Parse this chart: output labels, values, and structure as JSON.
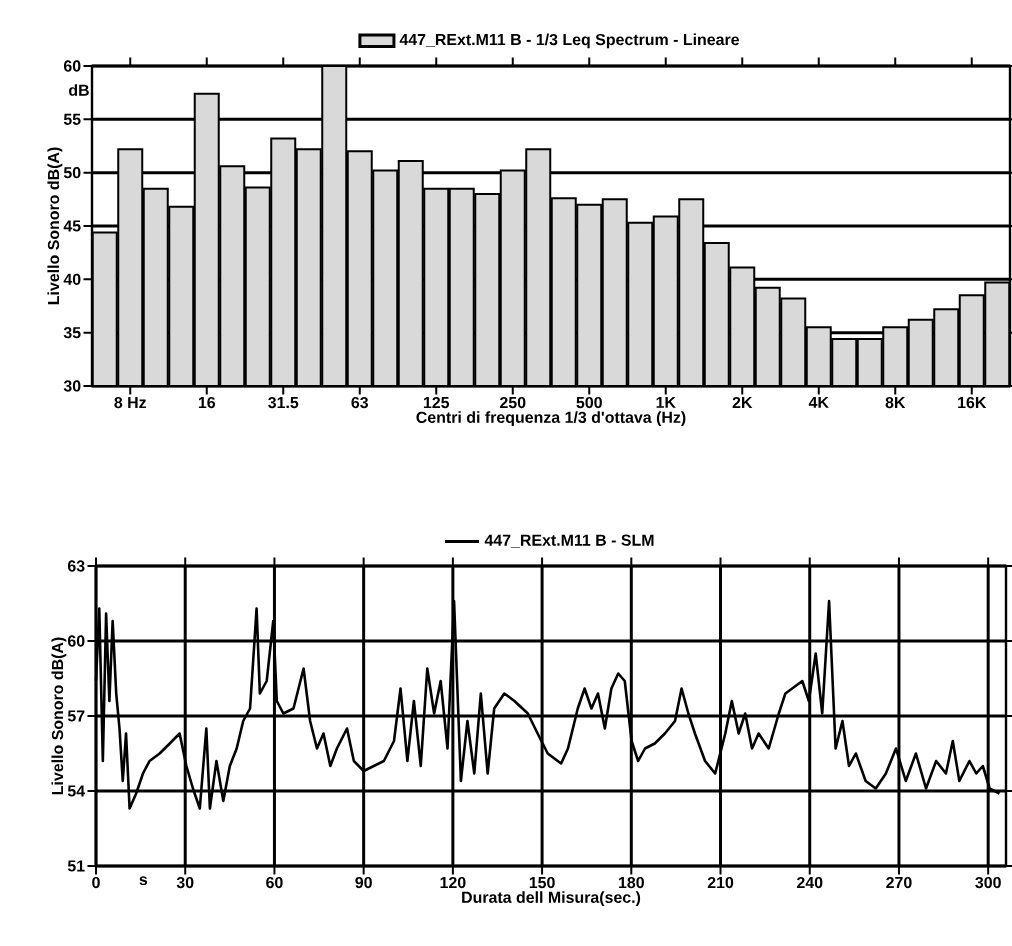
{
  "chart_data": [
    {
      "type": "bar",
      "categories": [
        null,
        "8 Hz",
        null,
        null,
        "16",
        null,
        null,
        "31.5",
        null,
        null,
        "63",
        null,
        null,
        "125",
        null,
        null,
        "250",
        null,
        null,
        "500",
        null,
        null,
        "1K",
        null,
        null,
        "2K",
        null,
        null,
        "4K",
        null,
        null,
        "8K",
        null,
        null,
        "16K",
        null
      ],
      "series": [
        {
          "name": "447_RExt.M11 B - 1/3 Leq Spectrum - Lineare",
          "color": "#d9d9d9",
          "values": [
            44.4,
            52.2,
            48.5,
            46.8,
            57.4,
            50.6,
            48.6,
            53.2,
            52.2,
            60,
            52,
            50.2,
            51.1,
            48.5,
            48.5,
            48,
            50.2,
            52.2,
            47.6,
            47,
            47.5,
            45.3,
            45.9,
            47.5,
            43.4,
            41.1,
            39.2,
            38.2,
            35.5,
            34.4,
            34.4,
            35.5,
            36.2,
            37.2,
            38.5,
            39.7
          ]
        }
      ],
      "ylim": [
        30,
        60
      ],
      "yticks": [
        30,
        35,
        40,
        45,
        50,
        55,
        60
      ],
      "xlabel": "Centri di frequenza 1/3 d'ottava (Hz)",
      "ylabel": "Livello Sonoro dB(A)",
      "grid": "y",
      "legend": "top",
      "annotations": [
        "dB"
      ]
    },
    {
      "type": "line",
      "x": [
        0,
        1.1,
        2.3,
        3.4,
        4.5,
        5.6,
        6.8,
        7.9,
        9.0,
        10.1,
        11.3,
        13.5,
        15.8,
        18.0,
        21.4,
        24.8,
        28.1,
        30.4,
        32.6,
        34.9,
        37.1,
        38.3,
        40.5,
        42.8,
        45.0,
        47.3,
        49.5,
        51.8,
        54.0,
        55.1,
        57.4,
        59.6,
        60.8,
        63.0,
        66.4,
        69.8,
        72.0,
        74.3,
        76.5,
        78.8,
        81.0,
        84.4,
        86.7,
        90.0,
        93.4,
        96.8,
        100.2,
        102.4,
        104.7,
        106.9,
        109.2,
        111.4,
        113.7,
        115.9,
        118.2,
        120.4,
        122.7,
        124.9,
        127.2,
        129.4,
        131.7,
        133.9,
        137.3,
        140.7,
        145.2,
        148.5,
        151.9,
        156.4,
        158.7,
        162.0,
        164.3,
        166.6,
        168.8,
        171.1,
        173.3,
        175.6,
        177.8,
        180.1,
        182.3,
        184.6,
        187.9,
        191.3,
        194.7,
        196.9,
        199.2,
        201.4,
        204.8,
        208.2,
        211.6,
        213.8,
        216.1,
        218.3,
        220.6,
        222.8,
        226.2,
        229.6,
        231.8,
        234.1,
        237.5,
        239.7,
        242.0,
        244.2,
        246.5,
        248.7,
        251.0,
        253.2,
        255.5,
        258.8,
        262.2,
        265.6,
        269.0,
        272.3,
        275.7,
        279.1,
        282.5,
        285.8,
        288.1,
        290.3,
        293.7,
        296.0,
        298.2,
        300.5,
        303.8
      ],
      "series": [
        {
          "name": "447_RExt.M11 B - SLM",
          "color": "#000000",
          "values": [
            58.4,
            61.3,
            55.2,
            61.1,
            57.6,
            60.8,
            57.9,
            56.5,
            54.4,
            56.3,
            53.3,
            53.9,
            54.7,
            55.2,
            55.5,
            55.9,
            56.3,
            55.0,
            54.1,
            53.3,
            56.5,
            53.3,
            55.2,
            53.6,
            55.0,
            55.7,
            56.8,
            57.3,
            61.3,
            57.9,
            58.4,
            60.8,
            57.6,
            57.1,
            57.3,
            58.9,
            56.8,
            55.7,
            56.3,
            55.0,
            55.7,
            56.5,
            55.2,
            54.8,
            55.0,
            55.2,
            56.0,
            58.1,
            55.2,
            57.6,
            55.0,
            58.9,
            57.1,
            58.4,
            55.7,
            61.6,
            54.4,
            56.8,
            54.7,
            57.9,
            54.7,
            57.3,
            57.9,
            57.6,
            57.1,
            56.3,
            55.5,
            55.1,
            55.7,
            57.3,
            58.1,
            57.3,
            57.9,
            56.5,
            58.1,
            58.7,
            58.4,
            56.0,
            55.2,
            55.7,
            55.9,
            56.3,
            56.8,
            58.1,
            57.1,
            56.3,
            55.2,
            54.7,
            56.3,
            57.6,
            56.3,
            57.1,
            55.7,
            56.3,
            55.7,
            57.1,
            57.9,
            58.1,
            58.4,
            57.6,
            59.5,
            57.1,
            61.6,
            55.7,
            56.8,
            55.0,
            55.5,
            54.4,
            54.1,
            54.7,
            55.7,
            54.4,
            55.5,
            54.1,
            55.2,
            54.7,
            56.0,
            54.4,
            55.2,
            54.7,
            55.0,
            54.1,
            53.9
          ]
        }
      ],
      "xlim": [
        0,
        306
      ],
      "xticks": [
        0,
        30,
        60,
        90,
        120,
        150,
        180,
        210,
        240,
        270,
        300
      ],
      "ylim": [
        51,
        63
      ],
      "yticks": [
        51,
        54,
        57,
        60,
        63
      ],
      "xlabel": "Durata dell Misura(sec.)",
      "ylabel": "Livello Sonoro dB(A)",
      "grid": true,
      "legend": "top",
      "line_style": "solid",
      "annotations": [
        "s"
      ]
    }
  ]
}
